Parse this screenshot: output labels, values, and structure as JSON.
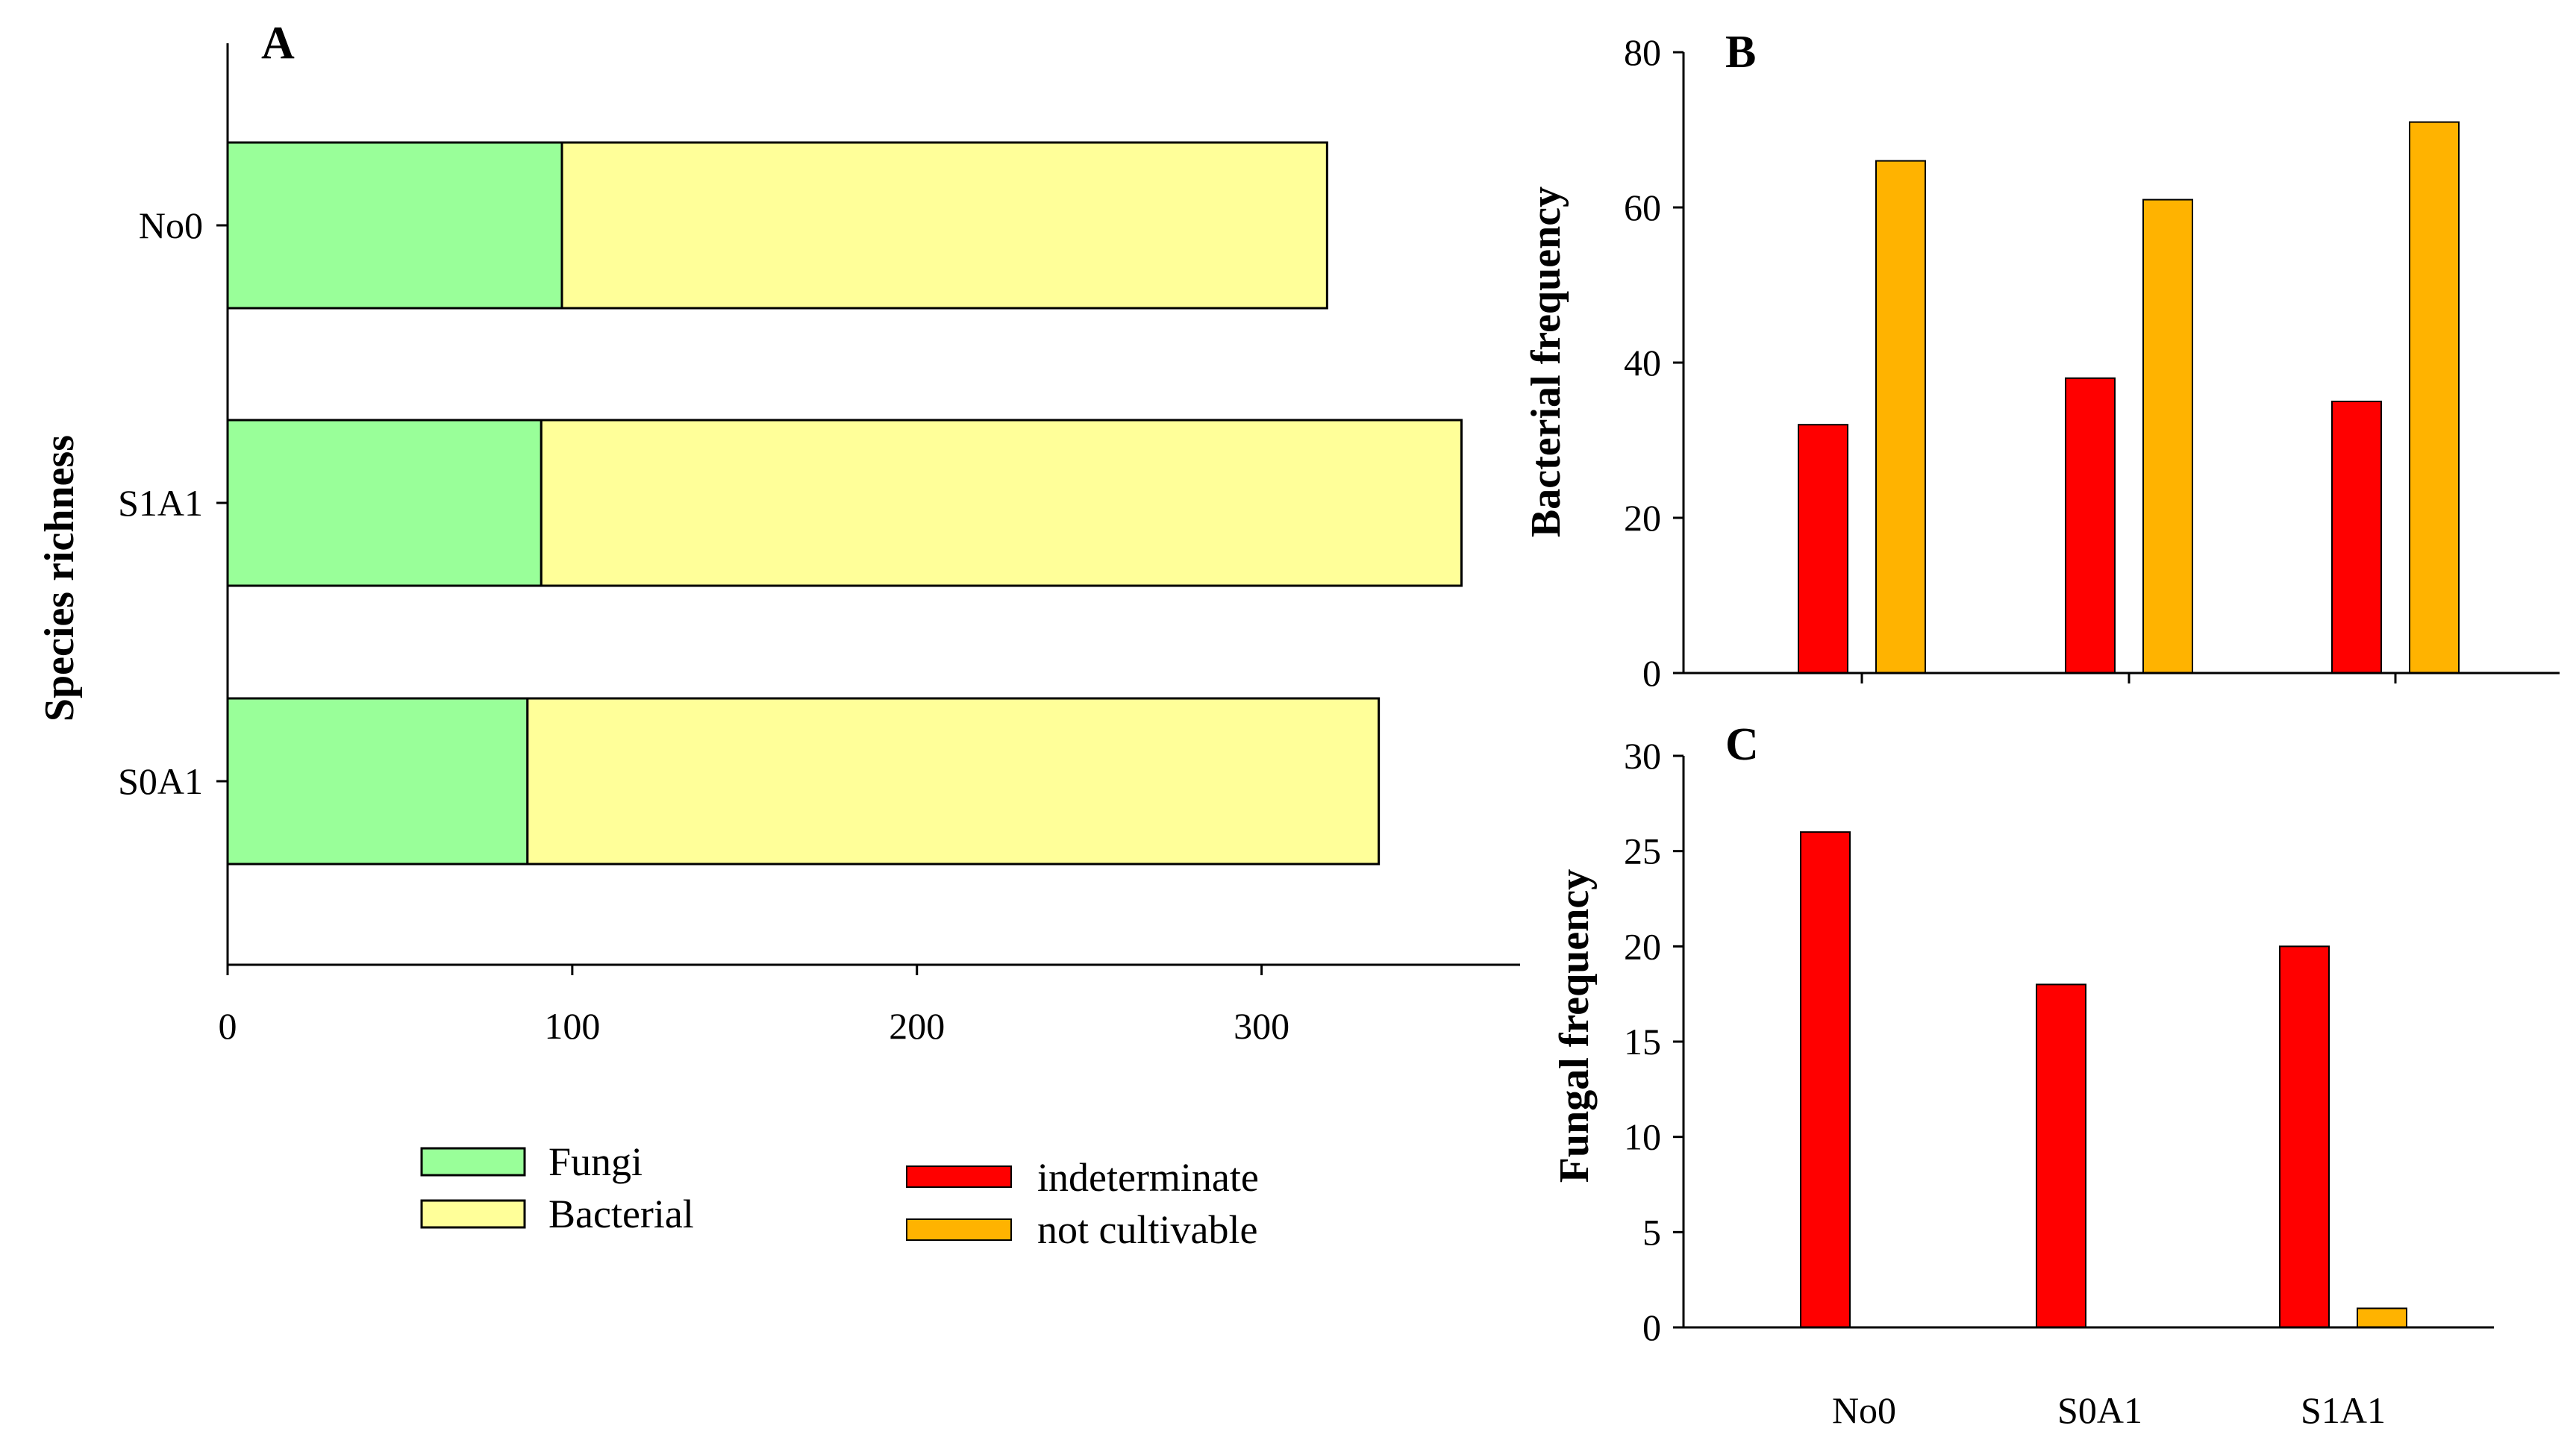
{
  "colors": {
    "fungi": "#99ff99",
    "bacterial": "#ffff99",
    "indeterminate": "#ff0000",
    "not_cultivable": "#ffb300",
    "outline": "#000000"
  },
  "legend_a": {
    "fungi": "Fungi",
    "bacterial": "Bacterial"
  },
  "legend_bc": {
    "indeterminate": "indeterminate",
    "not_cultivable": "not cultivable"
  },
  "chart_data": [
    {
      "panel": "A",
      "type": "bar",
      "orientation": "horizontal",
      "stacked": true,
      "categories": [
        "No0",
        "S1A1",
        "S0A1"
      ],
      "series": [
        {
          "name": "Fungi",
          "values": [
            97,
            91,
            87
          ]
        },
        {
          "name": "Bacterial",
          "values": [
            222,
            267,
            247
          ]
        }
      ],
      "xlim": [
        0,
        375
      ],
      "xticks": [
        0,
        100,
        200,
        300
      ],
      "ylabel": "Species richness",
      "xlabel": "",
      "legend": "bottom-left"
    },
    {
      "panel": "B",
      "type": "bar",
      "categories": [
        "No0",
        "S0A1",
        "S1A1"
      ],
      "series": [
        {
          "name": "indeterminate",
          "values": [
            32,
            38,
            35
          ]
        },
        {
          "name": "not cultivable",
          "values": [
            66,
            61,
            71
          ]
        }
      ],
      "ylim": [
        0,
        80
      ],
      "yticks": [
        0,
        20,
        40,
        60,
        80
      ],
      "ylabel": "Bacterial frequency"
    },
    {
      "panel": "C",
      "type": "bar",
      "categories": [
        "No0",
        "S0A1",
        "S1A1"
      ],
      "series": [
        {
          "name": "indeterminate",
          "values": [
            26,
            18,
            20
          ]
        },
        {
          "name": "not cultivable",
          "values": [
            0,
            0,
            1
          ]
        }
      ],
      "ylim": [
        0,
        30
      ],
      "yticks": [
        0,
        5,
        10,
        15,
        20,
        25,
        30
      ],
      "ylabel": "Fungal frequency",
      "legend": "bottom-center"
    }
  ]
}
